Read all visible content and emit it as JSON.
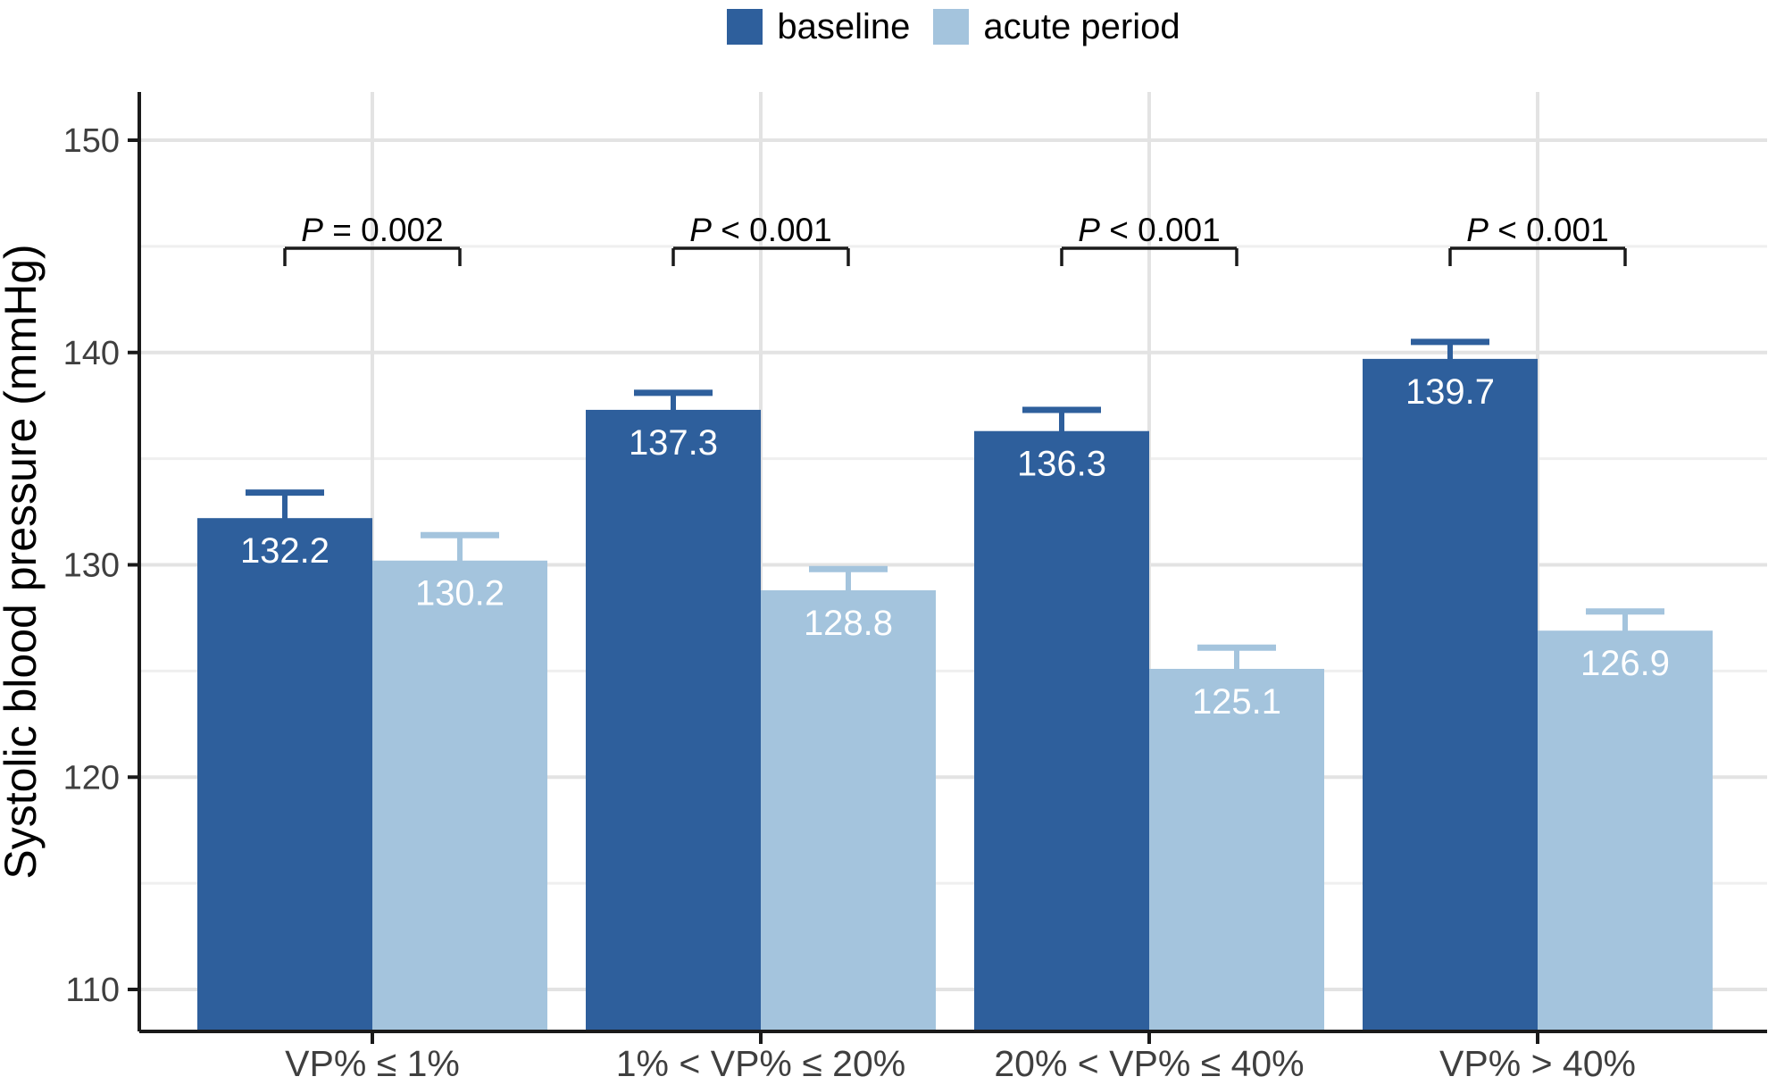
{
  "legend": [
    {
      "label": "baseline",
      "color": "#2e5f9c"
    },
    {
      "label": "acute period",
      "color": "#a4c4dd"
    }
  ],
  "chart_data": {
    "type": "bar",
    "title": "",
    "xlabel": "",
    "ylabel": "Systolic blood pressure (mmHg)",
    "categories": [
      "VP% ≤ 1%",
      "1% < VP% ≤ 20%",
      "20% < VP% ≤ 40%",
      "VP% > 40%"
    ],
    "series": [
      {
        "name": "baseline",
        "color": "#2e5f9c",
        "values": [
          132.2,
          137.3,
          136.3,
          139.7
        ],
        "error_upper": [
          133.4,
          138.1,
          137.3,
          140.5
        ]
      },
      {
        "name": "acute period",
        "color": "#a4c4dd",
        "values": [
          130.2,
          128.8,
          125.1,
          126.9
        ],
        "error_upper": [
          131.4,
          129.8,
          126.1,
          127.8
        ]
      }
    ],
    "p_values": [
      "P = 0.002",
      "P < 0.001",
      "P < 0.001",
      "P < 0.001"
    ],
    "y_ticks": [
      110,
      120,
      130,
      140,
      150
    ],
    "y_minor_ticks": [
      115,
      125,
      135,
      145
    ],
    "ylim": [
      108,
      152.3
    ],
    "grid": true,
    "legend_position": "top",
    "bar_label_color": "#ffffff",
    "axis_color": "#1a1a1a",
    "tick_label_color": "#3f3f3f",
    "grid_major_color": "#e3e3e3",
    "grid_minor_color": "#efefef"
  }
}
